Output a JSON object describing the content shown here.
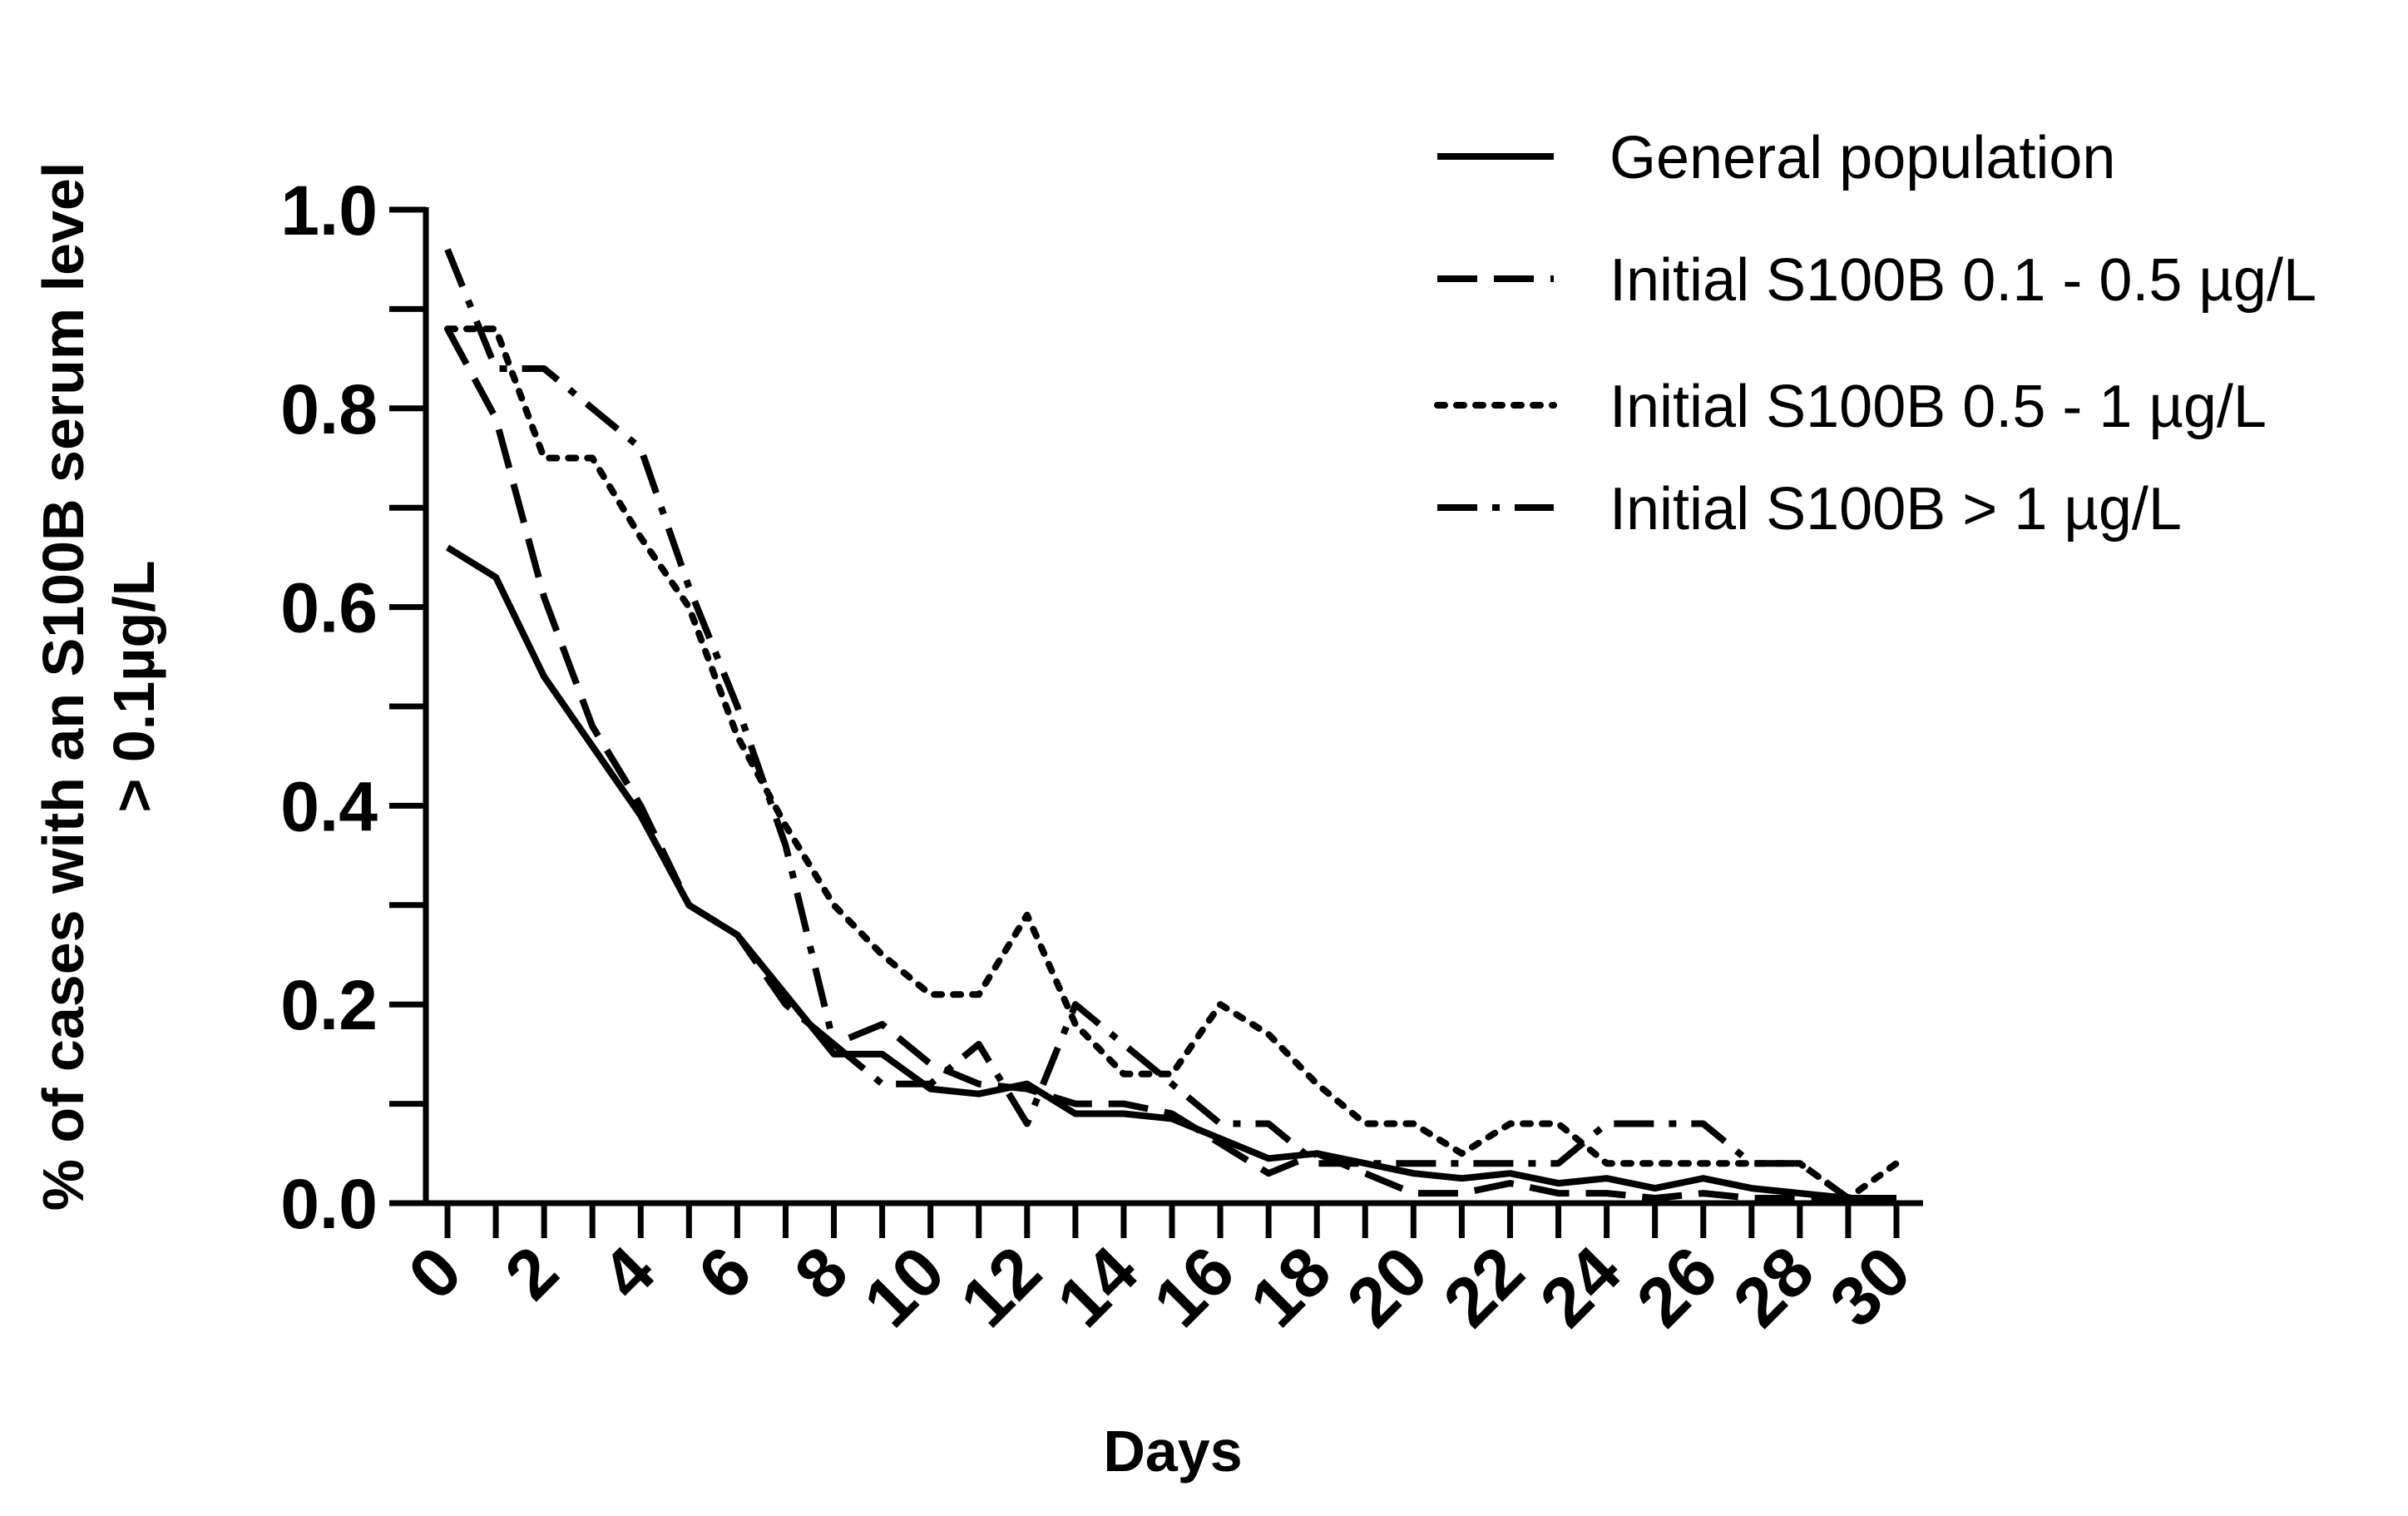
{
  "chart_data": {
    "type": "line",
    "title": "",
    "xlabel": "Days",
    "ylabel_line1": "% of cases with an S100B serum level",
    "ylabel_line2": "> 0.1µg/L",
    "xlim": [
      0,
      30
    ],
    "ylim": [
      0,
      1.0
    ],
    "x_ticks": [
      0,
      2,
      4,
      6,
      8,
      10,
      12,
      14,
      16,
      18,
      20,
      22,
      24,
      26,
      28,
      30
    ],
    "x_tick_labels": [
      "0",
      "2",
      "4",
      "6",
      "8",
      "10",
      "12",
      "14",
      "16",
      "18",
      "20",
      "22",
      "24",
      "26",
      "28",
      "30"
    ],
    "y_ticks": [
      0.0,
      0.2,
      0.4,
      0.6,
      0.8,
      1.0
    ],
    "y_tick_labels": [
      "0.0",
      "0.2",
      "0.4",
      "0.6",
      "0.8",
      "1.0"
    ],
    "legend_position": "top-right",
    "series": [
      {
        "name": "General population",
        "style": "solid",
        "x": [
          0,
          1,
          2,
          3,
          4,
          5,
          6,
          7,
          8,
          9,
          10,
          11,
          12,
          13,
          14,
          15,
          16,
          17,
          18,
          19,
          20,
          21,
          22,
          23,
          24,
          25,
          26,
          27,
          28,
          29,
          30
        ],
        "values": [
          0.66,
          0.63,
          0.53,
          0.46,
          0.39,
          0.3,
          0.27,
          0.21,
          0.15,
          0.15,
          0.115,
          0.11,
          0.12,
          0.09,
          0.09,
          0.085,
          0.065,
          0.045,
          0.05,
          0.04,
          0.03,
          0.025,
          0.03,
          0.02,
          0.025,
          0.015,
          0.025,
          0.015,
          0.01,
          0.005,
          0.005
        ]
      },
      {
        "name": "Initial S100B 0.1 - 0.5 µg/L",
        "style": "dashed",
        "x": [
          0,
          1,
          2,
          3,
          4,
          5,
          6,
          7,
          8,
          9,
          10,
          11,
          12,
          13,
          14,
          15,
          16,
          17,
          18,
          19,
          20,
          21,
          22,
          23,
          24,
          25,
          26,
          27,
          28,
          29,
          30
        ],
        "values": [
          0.88,
          0.79,
          0.61,
          0.48,
          0.4,
          0.3,
          0.27,
          0.2,
          0.16,
          0.18,
          0.14,
          0.12,
          0.115,
          0.1,
          0.1,
          0.09,
          0.06,
          0.03,
          0.05,
          0.03,
          0.01,
          0.01,
          0.02,
          0.01,
          0.01,
          0.005,
          0.01,
          0.005,
          0.005,
          0.005,
          0.005
        ]
      },
      {
        "name": "Initial S100B 0.5 - 1 µg/L",
        "style": "dotted",
        "x": [
          0,
          1,
          2,
          3,
          4,
          5,
          6,
          7,
          8,
          9,
          10,
          11,
          12,
          13,
          14,
          15,
          16,
          17,
          18,
          19,
          20,
          21,
          22,
          23,
          24,
          25,
          26,
          27,
          28,
          29,
          30
        ],
        "values": [
          0.88,
          0.88,
          0.75,
          0.75,
          0.67,
          0.6,
          0.47,
          0.38,
          0.3,
          0.25,
          0.21,
          0.21,
          0.29,
          0.18,
          0.13,
          0.13,
          0.2,
          0.17,
          0.12,
          0.08,
          0.08,
          0.05,
          0.08,
          0.08,
          0.04,
          0.04,
          0.04,
          0.04,
          0.04,
          0.005,
          0.04
        ]
      },
      {
        "name": "Initial S100B > 1 µg/L",
        "style": "dashdot",
        "x": [
          0,
          1,
          2,
          3,
          4,
          5,
          6,
          7,
          8,
          9,
          10,
          11,
          12,
          13,
          14,
          15,
          16,
          17,
          18,
          19,
          20,
          21,
          22,
          23,
          24,
          25,
          26,
          27,
          28,
          29,
          30
        ],
        "values": [
          0.96,
          0.84,
          0.84,
          0.8,
          0.76,
          0.62,
          0.5,
          0.36,
          0.16,
          0.12,
          0.12,
          0.16,
          0.08,
          0.2,
          0.16,
          0.12,
          0.08,
          0.08,
          0.04,
          0.04,
          0.04,
          0.04,
          0.04,
          0.04,
          0.08,
          0.08,
          0.08,
          0.04,
          0.04,
          0.005,
          0.005
        ]
      }
    ]
  }
}
